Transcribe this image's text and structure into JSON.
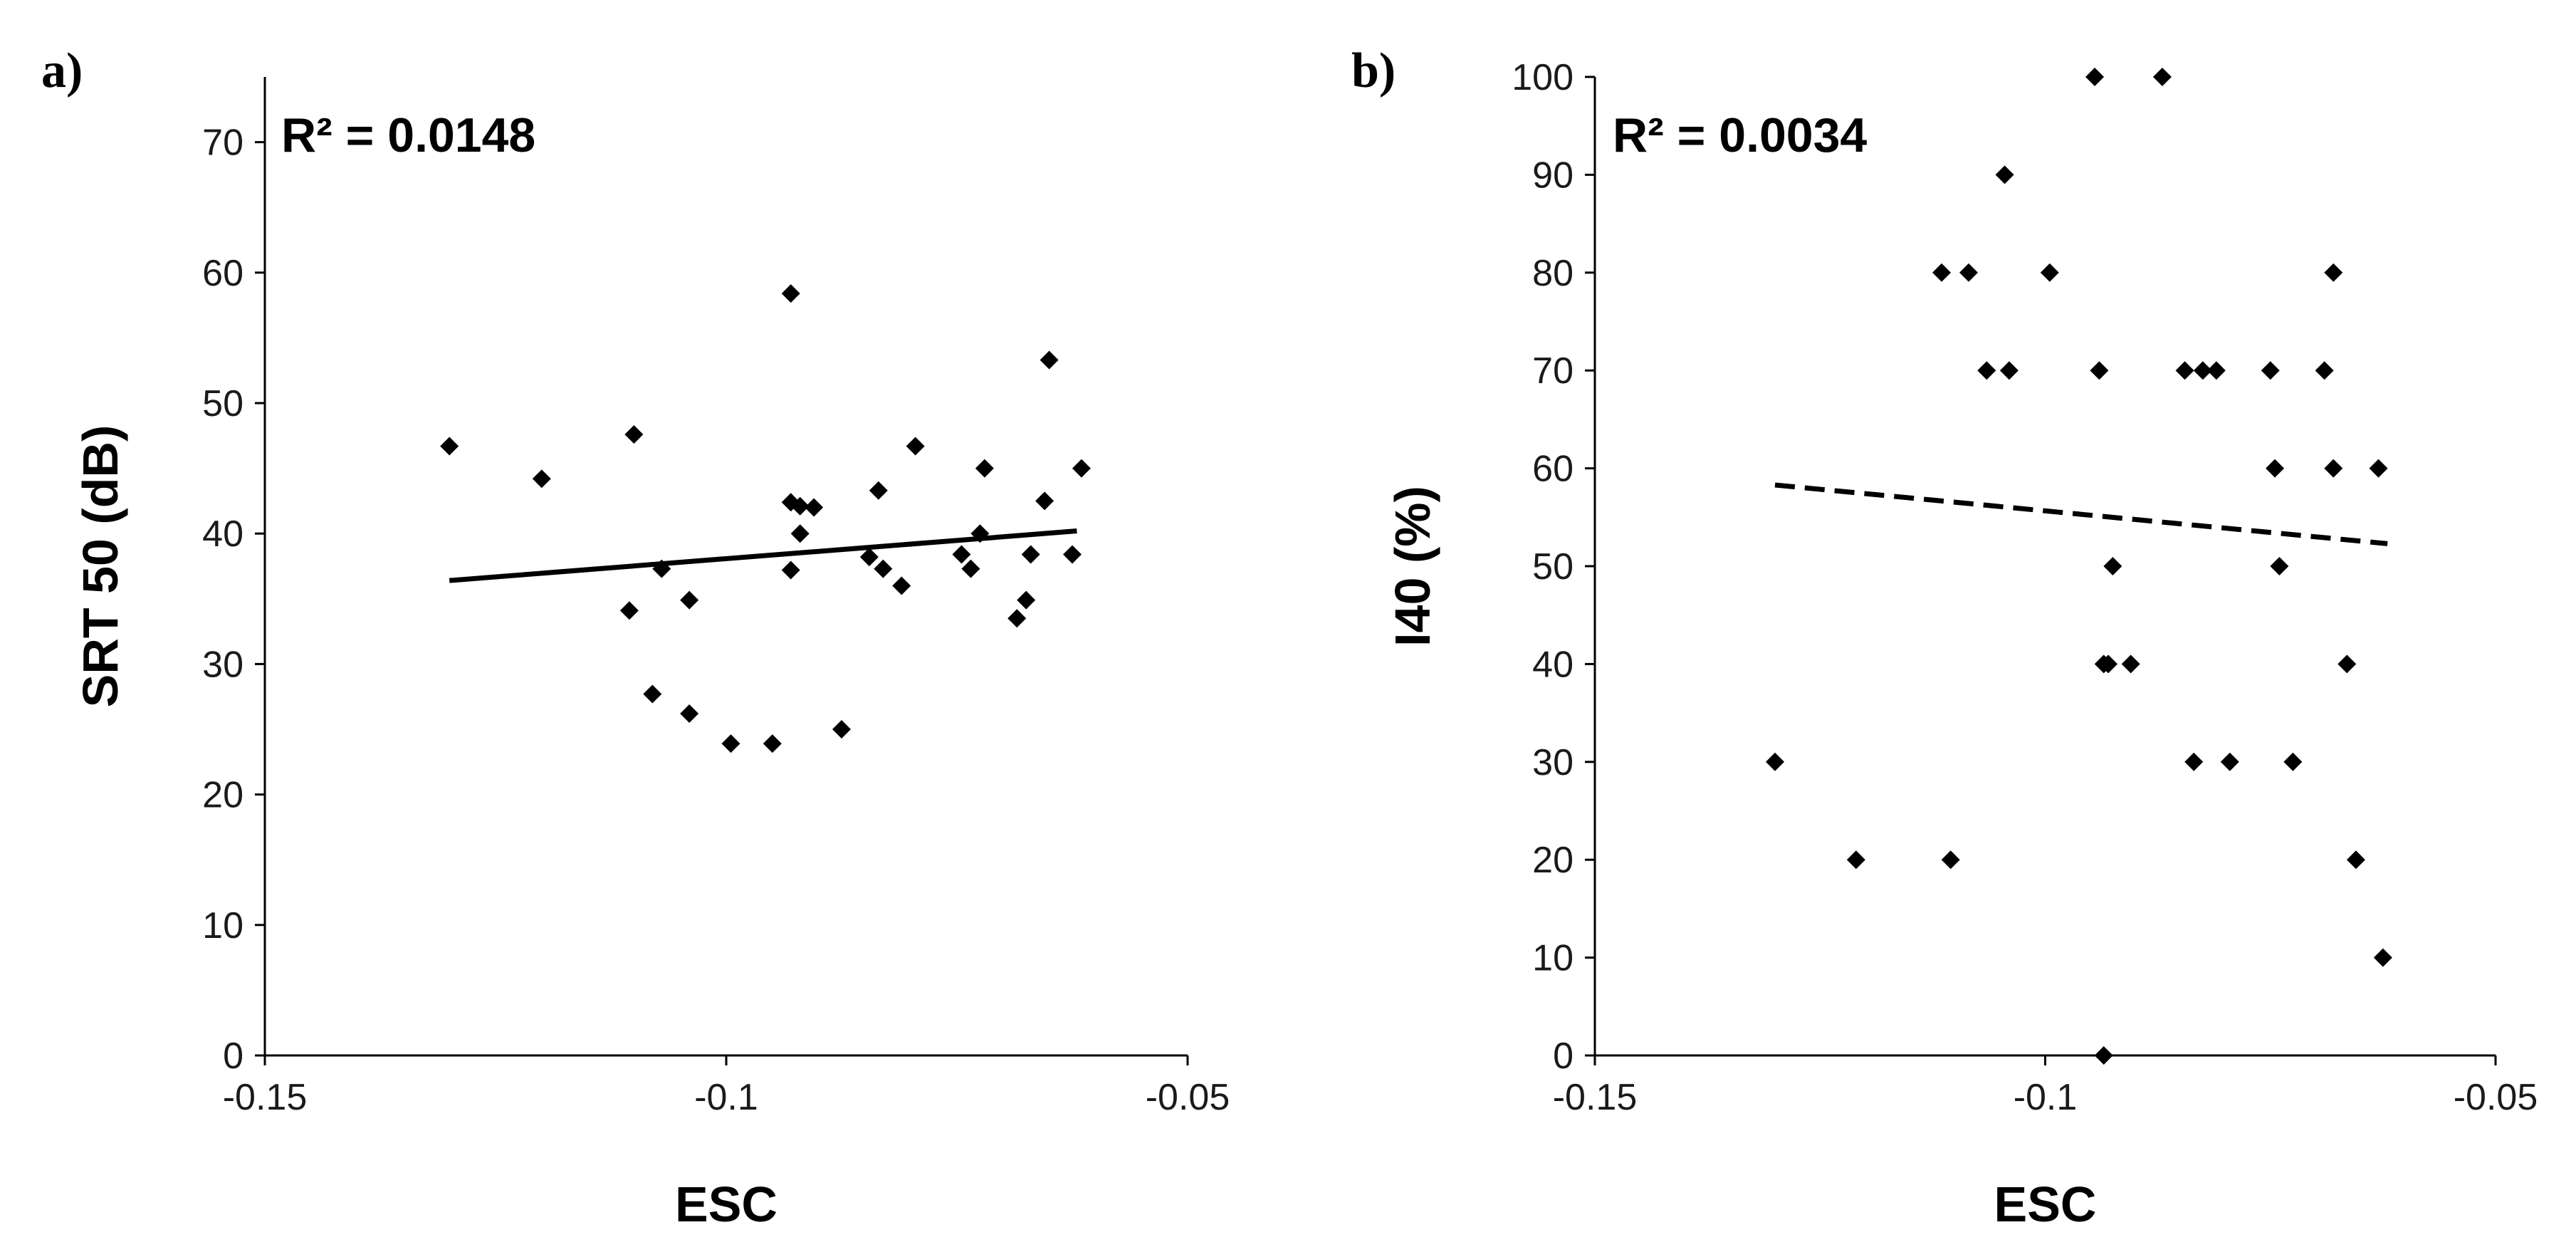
{
  "chart_data": [
    {
      "type": "scatter",
      "panel_label": "a)",
      "xlabel": "ESC",
      "ylabel": "SRT 50 (dB)",
      "xlim": [
        -0.15,
        -0.05
      ],
      "ylim": [
        0,
        75
      ],
      "xticks": [
        -0.15,
        -0.1,
        -0.05
      ],
      "xtick_labels": [
        "-0.15",
        "-0.1",
        "-0.05"
      ],
      "yticks": [
        0,
        10,
        20,
        30,
        40,
        50,
        60,
        70
      ],
      "ytick_labels": [
        "0",
        "10",
        "20",
        "30",
        "40",
        "50",
        "60",
        "70"
      ],
      "annotation": "R² = 0.0148",
      "trendline": {
        "style": "solid",
        "x": [
          -0.13,
          -0.062
        ],
        "y": [
          36.4,
          40.2
        ]
      },
      "x": [
        -0.13,
        -0.12,
        -0.11,
        -0.1105,
        -0.108,
        -0.107,
        -0.104,
        -0.104,
        -0.0995,
        -0.095,
        -0.093,
        -0.093,
        -0.093,
        -0.092,
        -0.092,
        -0.0905,
        -0.0875,
        -0.0845,
        -0.0835,
        -0.083,
        -0.081,
        -0.0795,
        -0.0745,
        -0.0735,
        -0.0725,
        -0.072,
        -0.0685,
        -0.0675,
        -0.067,
        -0.0655,
        -0.065,
        -0.0625,
        -0.0615
      ],
      "y": [
        46.7,
        44.2,
        47.6,
        34.1,
        27.7,
        37.3,
        26.2,
        34.9,
        23.9,
        23.9,
        58.4,
        42.4,
        37.2,
        42.1,
        40.0,
        42.0,
        25.0,
        38.2,
        43.3,
        37.3,
        36.0,
        46.7,
        38.4,
        37.3,
        40.0,
        45.0,
        33.5,
        34.9,
        38.4,
        42.5,
        53.3,
        38.4,
        45.0
      ]
    },
    {
      "type": "scatter",
      "panel_label": "b)",
      "xlabel": "ESC",
      "ylabel": "I40 (%)",
      "xlim": [
        -0.15,
        -0.05
      ],
      "ylim": [
        0,
        100
      ],
      "xticks": [
        -0.15,
        -0.1,
        -0.05
      ],
      "xtick_labels": [
        "-0.15",
        "-0.1",
        "-0.05"
      ],
      "yticks": [
        0,
        10,
        20,
        30,
        40,
        50,
        60,
        70,
        80,
        90,
        100
      ],
      "ytick_labels": [
        "0",
        "10",
        "20",
        "30",
        "40",
        "50",
        "60",
        "70",
        "80",
        "90",
        "100"
      ],
      "annotation": "R² = 0.0034",
      "trendline": {
        "style": "dashed",
        "x": [
          -0.13,
          -0.062
        ],
        "y": [
          58.3,
          52.3
        ]
      },
      "x": [
        -0.13,
        -0.121,
        -0.1105,
        -0.1115,
        -0.1085,
        -0.1065,
        -0.104,
        -0.1045,
        -0.0995,
        -0.0945,
        -0.094,
        -0.0935,
        -0.093,
        -0.0925,
        -0.0935,
        -0.0905,
        -0.087,
        -0.0845,
        -0.0835,
        -0.0825,
        -0.081,
        -0.0795,
        -0.075,
        -0.0745,
        -0.074,
        -0.0725,
        -0.069,
        -0.068,
        -0.068,
        -0.0665,
        -0.0655,
        -0.063,
        -0.0625
      ],
      "y": [
        30,
        20,
        20,
        80,
        80,
        70,
        70,
        90,
        80,
        100,
        70,
        0,
        40,
        50,
        40,
        40,
        100,
        70,
        30,
        70,
        70,
        30,
        70,
        60,
        50,
        30,
        70,
        80,
        60,
        40,
        20,
        60,
        10
      ]
    }
  ]
}
